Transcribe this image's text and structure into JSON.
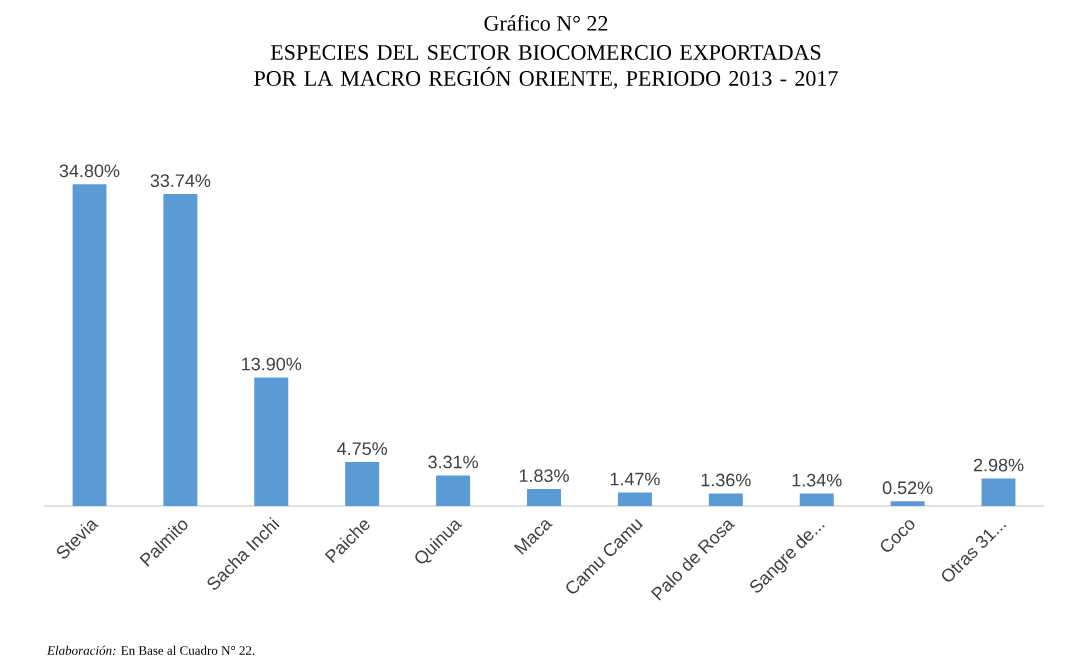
{
  "chart_data": {
    "type": "bar",
    "title": "Gráfico N° 22",
    "subtitle": "ESPECIES DEL SECTOR BIOCOMERCIO EXPORTADAS POR LA MACRO REGIÓN ORIENTE, PERIODO 2013 - 2017",
    "categories": [
      "Stevia",
      "Palmito",
      "Sacha Inchi",
      "Paiche",
      "Quinua",
      "Maca",
      "Camu Camu",
      "Palo de Rosa",
      "Sangre de...",
      "Coco",
      "Otras 31..."
    ],
    "values": [
      34.8,
      33.74,
      13.9,
      4.75,
      3.31,
      1.83,
      1.47,
      1.36,
      1.34,
      0.52,
      2.98
    ],
    "value_labels": [
      "34.80%",
      "33.74%",
      "13.90%",
      "4.75%",
      "3.31%",
      "1.83%",
      "1.47%",
      "1.36%",
      "1.34%",
      "0.52%",
      "2.98%"
    ],
    "color": "#5b9bd5",
    "annotations": [
      "*Elaboración:* En Base al Cuadro N° 22."
    ],
    "tick_labels": "x"
  }
}
